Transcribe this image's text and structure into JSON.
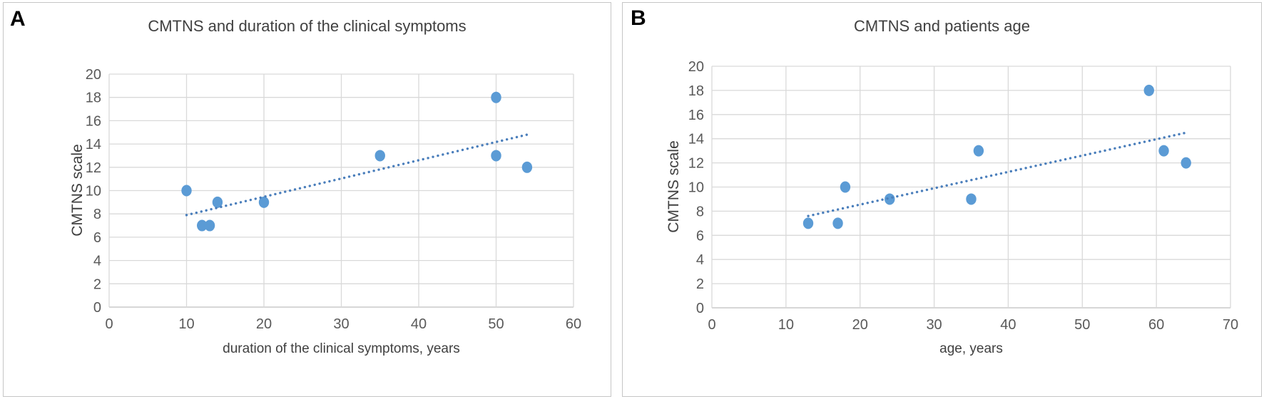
{
  "colors": {
    "marker": "#5b9bd5",
    "trendline": "#4a7ebb",
    "gridline": "#d9d9d9",
    "axis_line": "#bfbfbf",
    "tick_text": "#595959",
    "title_text": "#404040",
    "panel_border": "#c6c6c6",
    "panel_label": "#000000"
  },
  "chart_data": [
    {
      "type": "scatter",
      "panel_label": "A",
      "title": "CMTNS and duration of the clinical symptoms",
      "xlabel": "duration of the clinical symptoms, years",
      "ylabel": "CMTNS scale",
      "xlim": [
        0,
        60
      ],
      "ylim": [
        0,
        20
      ],
      "xticks": [
        0,
        10,
        20,
        30,
        40,
        50,
        60
      ],
      "yticks": [
        0,
        2,
        4,
        6,
        8,
        10,
        12,
        14,
        16,
        18,
        20
      ],
      "grid": true,
      "legend": false,
      "points": [
        [
          10,
          10
        ],
        [
          12,
          7
        ],
        [
          13,
          7
        ],
        [
          14,
          9
        ],
        [
          20,
          9
        ],
        [
          35,
          13
        ],
        [
          50,
          13
        ],
        [
          50,
          18
        ],
        [
          54,
          12
        ]
      ],
      "trendline": {
        "style": "dotted",
        "x1": 10,
        "y1": 7.9,
        "x2": 54,
        "y2": 14.8
      }
    },
    {
      "type": "scatter",
      "panel_label": "B",
      "title": "CMTNS and patients age",
      "xlabel": "age, years",
      "ylabel": "CMTNS scale",
      "xlim": [
        0,
        70
      ],
      "ylim": [
        0,
        20
      ],
      "xticks": [
        0,
        10,
        20,
        30,
        40,
        50,
        60,
        70
      ],
      "yticks": [
        0,
        2,
        4,
        6,
        8,
        10,
        12,
        14,
        16,
        18,
        20
      ],
      "grid": true,
      "legend": false,
      "points": [
        [
          13,
          7
        ],
        [
          17,
          7
        ],
        [
          18,
          10
        ],
        [
          24,
          9
        ],
        [
          35,
          9
        ],
        [
          36,
          13
        ],
        [
          59,
          18
        ],
        [
          61,
          13
        ],
        [
          64,
          12
        ]
      ],
      "trendline": {
        "style": "dotted",
        "x1": 13,
        "y1": 7.6,
        "x2": 64,
        "y2": 14.5
      }
    }
  ]
}
